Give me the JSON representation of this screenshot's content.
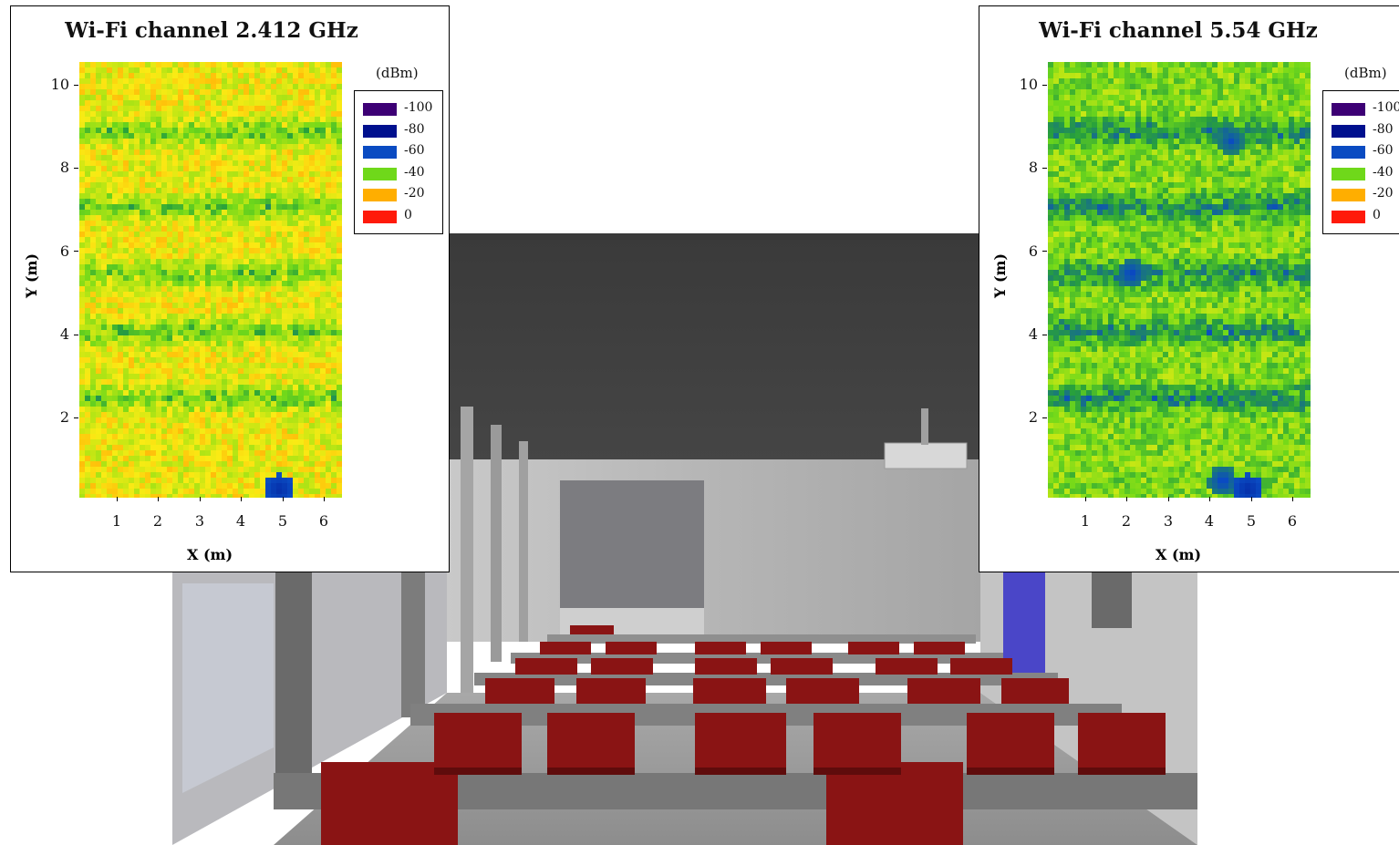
{
  "chart_data": [
    {
      "type": "heatmap",
      "title": "Wi-Fi channel 2.412 GHz",
      "xlabel": "X (m)",
      "ylabel": "Y (m)",
      "xlim": [
        0.2,
        6.5
      ],
      "ylim": [
        0,
        10.5
      ],
      "xticks": [
        1,
        2,
        3,
        4,
        5,
        6
      ],
      "yticks": [
        2,
        4,
        6,
        8,
        10
      ],
      "legend_title": "(dBm)",
      "legend": [
        {
          "value": "-100",
          "color": "#3d0075"
        },
        {
          "value": "-80",
          "color": "#00108e"
        },
        {
          "value": "-60",
          "color": "#0a4bc2"
        },
        {
          "value": "-40",
          "color": "#6fd81a"
        },
        {
          "value": "-20",
          "color": "#ffae00"
        },
        {
          "value": "0",
          "color": "#ff1a0a"
        }
      ],
      "mean_dbm": -25,
      "weak_bands_y": [
        2.4,
        4.0,
        5.4,
        7.0,
        8.8
      ],
      "weak_spots": [
        {
          "x": 5.0,
          "y": 0.2,
          "dbm": -70
        }
      ]
    },
    {
      "type": "heatmap",
      "title": "Wi-Fi channel 5.54 GHz",
      "xlabel": "X (m)",
      "ylabel": "Y (m)",
      "xlim": [
        0.2,
        6.5
      ],
      "ylim": [
        0,
        10.5
      ],
      "xticks": [
        1,
        2,
        3,
        4,
        5,
        6
      ],
      "yticks": [
        2,
        4,
        6,
        8,
        10
      ],
      "legend_title": "(dBm)",
      "legend": [
        {
          "value": "-100",
          "color": "#3d0075"
        },
        {
          "value": "-80",
          "color": "#00108e"
        },
        {
          "value": "-60",
          "color": "#0a4bc2"
        },
        {
          "value": "-40",
          "color": "#6fd81a"
        },
        {
          "value": "-20",
          "color": "#ffae00"
        },
        {
          "value": "0",
          "color": "#ff1a0a"
        }
      ],
      "mean_dbm": -36,
      "weak_bands_y": [
        2.4,
        4.0,
        5.4,
        7.0,
        8.8
      ],
      "weak_spots": [
        {
          "x": 2.2,
          "y": 5.4,
          "dbm": -62
        },
        {
          "x": 4.6,
          "y": 8.6,
          "dbm": -60
        },
        {
          "x": 4.4,
          "y": 0.4,
          "dbm": -62
        },
        {
          "x": 5.0,
          "y": 0.2,
          "dbm": -70
        }
      ]
    }
  ],
  "scene": {
    "colors": {
      "wall_dark": "#3c3c3c",
      "wall_light": "#b7b7b7",
      "floor": "#9c9c9c",
      "chair": "#8a1414",
      "desk": "#7a7a7a",
      "board": "#7d7d7d",
      "blue_panel": "#4a46c8"
    }
  }
}
